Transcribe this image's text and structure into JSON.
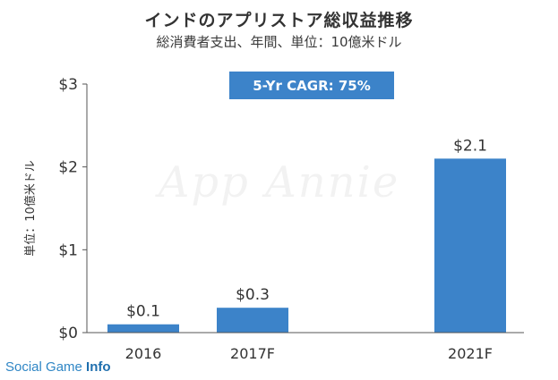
{
  "chart_data": {
    "type": "bar",
    "title": "インドのアプリストア総収益推移",
    "subtitle": "総消費者支出、年間、単位：10億米ドル",
    "ylabel": "単位：10億米ドル",
    "xlabel": "",
    "categories": [
      "2016",
      "2017F",
      "2021F"
    ],
    "values": [
      0.1,
      0.3,
      2.1
    ],
    "data_labels": [
      "$0.1",
      "$0.3",
      "$2.1"
    ],
    "yticks": [
      0,
      1,
      2,
      3
    ],
    "ytick_labels": [
      "$0",
      "$1",
      "$2",
      "$3"
    ],
    "ylim": [
      0,
      3
    ],
    "bar_color": "#3c83c9",
    "grid": false,
    "annotation": "5-Yr CAGR: 75%",
    "watermark": "App Annie"
  },
  "credit": {
    "part1": "Social Game ",
    "part2": "Info"
  }
}
